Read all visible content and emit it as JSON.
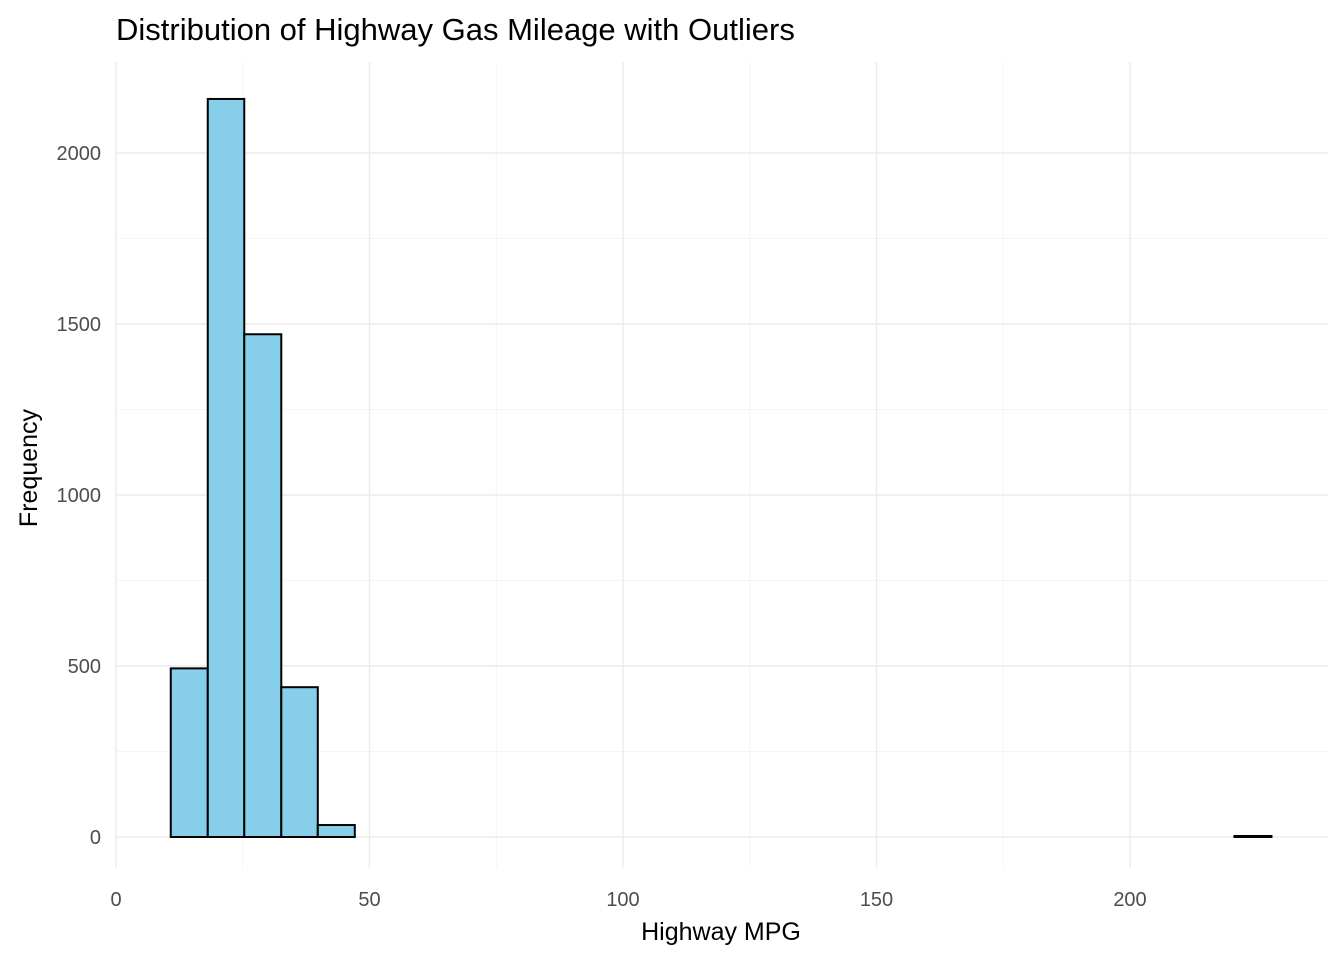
{
  "chart_data": {
    "type": "bar",
    "title": "Distribution of Highway Gas Mileage with Outliers",
    "xlabel": "Highway MPG",
    "ylabel": "Frequency",
    "xlim": [
      0,
      228
    ],
    "ylim": [
      0,
      2200
    ],
    "x_ticks": [
      0,
      50,
      100,
      150,
      200
    ],
    "y_ticks": [
      0,
      500,
      1000,
      1500,
      2000
    ],
    "grid": true,
    "bar_fill": "#87CEEB",
    "bar_outline": "#000000",
    "bins": [
      {
        "x0": 10.8,
        "x1": 18.1,
        "count": 493
      },
      {
        "x0": 18.1,
        "x1": 25.3,
        "count": 2158
      },
      {
        "x0": 25.3,
        "x1": 32.6,
        "count": 1470
      },
      {
        "x0": 32.6,
        "x1": 39.8,
        "count": 438
      },
      {
        "x0": 39.8,
        "x1": 47.1,
        "count": 35
      },
      {
        "x0": 47.1,
        "x1": 220.6,
        "count": 0
      },
      {
        "x0": 220.6,
        "x1": 227.9,
        "count": 3
      }
    ]
  }
}
